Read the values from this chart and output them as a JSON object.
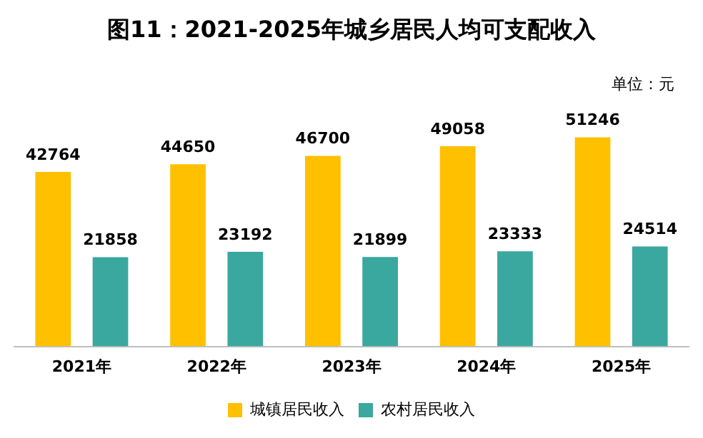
{
  "chart_data": {
    "type": "bar",
    "title": "图11：2021-2025年城乡居民人均可支配收入",
    "annotations": [
      "单位：元"
    ],
    "categories": [
      "2021年",
      "2022年",
      "2023年",
      "2024年",
      "2025年"
    ],
    "series": [
      {
        "name": "城镇居民收入",
        "color": "#ffc000",
        "values": [
          42764,
          44650,
          46700,
          49058,
          51246
        ]
      },
      {
        "name": "农村居民收入",
        "color": "#3aa89f",
        "values": [
          21858,
          23192,
          21899,
          23333,
          24514
        ]
      }
    ],
    "data_labels": true,
    "grid": false,
    "legend": "bottom"
  }
}
